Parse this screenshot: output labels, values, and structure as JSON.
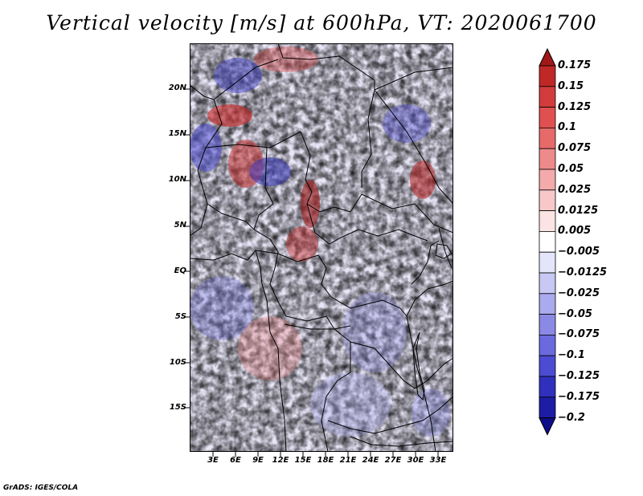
{
  "title": "Vertical velocity [m/s] at 600hPa, VT: 2020061700",
  "footer": "GrADS: IGES/COLA",
  "map": {
    "lat_labels": [
      "20N",
      "15N",
      "10N",
      "5N",
      "EQ",
      "5S",
      "10S",
      "15S"
    ],
    "lon_labels": [
      "3E",
      "6E",
      "9E",
      "12E",
      "15E",
      "18E",
      "21E",
      "24E",
      "27E",
      "30E",
      "33E"
    ]
  },
  "colorbar": {
    "levels": [
      "0.175",
      "0.15",
      "0.125",
      "0.1",
      "0.075",
      "0.05",
      "0.025",
      "0.0125",
      "0.005",
      "-0.005",
      "-0.0125",
      "-0.025",
      "-0.05",
      "-0.075",
      "-0.1",
      "-0.125",
      "-0.175",
      "-0.2"
    ],
    "colors": [
      "#a01818",
      "#c02828",
      "#d23c3c",
      "#e05050",
      "#e66a6a",
      "#ee8a8a",
      "#f4aaaa",
      "#f8c8c8",
      "#fce4e4",
      "#ffffff",
      "#e4e4fa",
      "#c8c8f4",
      "#aaaaee",
      "#8a8ae6",
      "#6a6ade",
      "#4c4cd2",
      "#3030be",
      "#1c1ca4",
      "#0e0e8a"
    ]
  }
}
